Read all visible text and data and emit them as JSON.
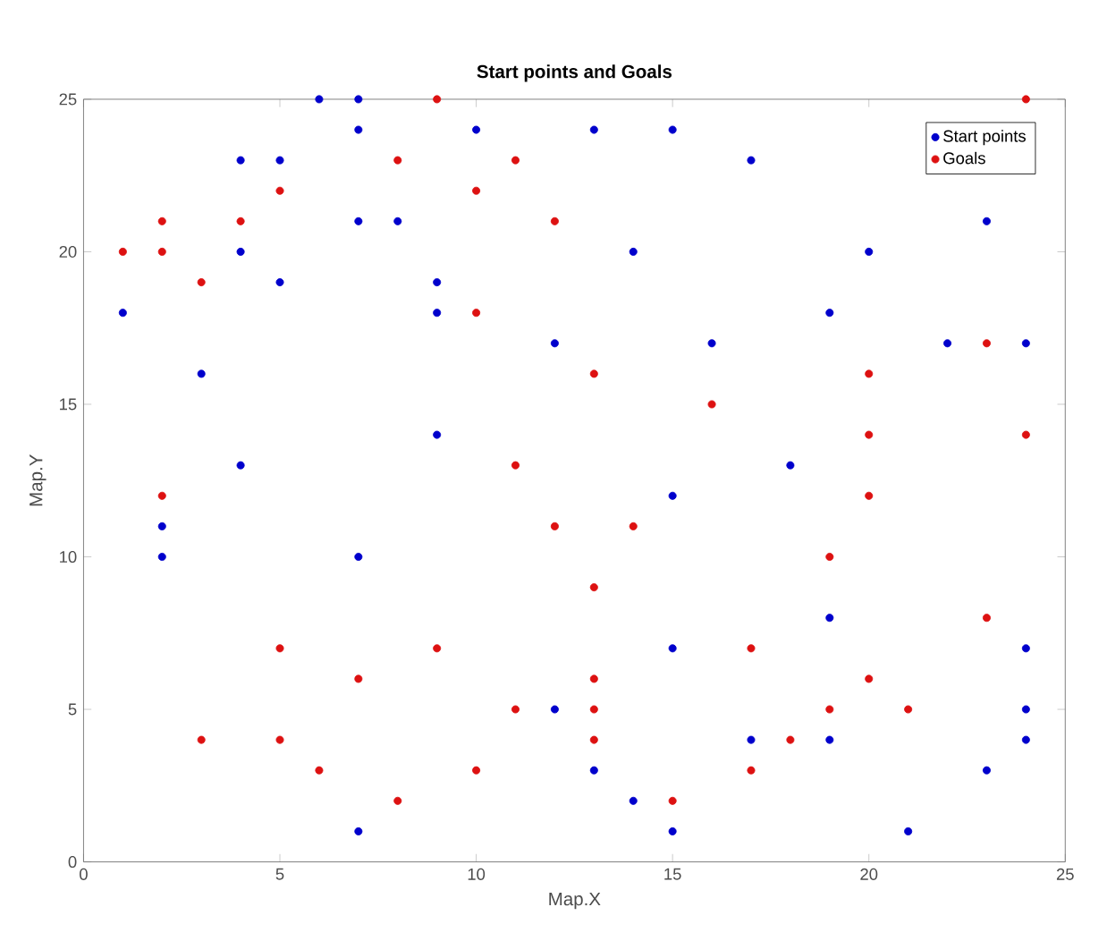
{
  "chart_data": {
    "type": "scatter",
    "title": "Start points and Goals",
    "xlabel": "Map.X",
    "ylabel": "Map.Y",
    "xlim": [
      0,
      25
    ],
    "ylim": [
      0,
      25
    ],
    "xticks": [
      0,
      5,
      10,
      15,
      20,
      25
    ],
    "yticks": [
      0,
      5,
      10,
      15,
      20,
      25
    ],
    "marker": "circle",
    "legend": "top right",
    "series": [
      {
        "name": "Start points",
        "color": "#0000cc",
        "x": [
          6,
          7,
          7,
          10,
          13,
          15,
          4,
          5,
          17,
          7,
          8,
          23,
          4,
          14,
          20,
          1,
          5,
          9,
          9,
          19,
          12,
          16,
          22,
          24,
          3,
          9,
          4,
          18,
          2,
          2,
          7,
          15,
          19,
          24,
          15,
          12,
          13,
          17,
          19,
          23,
          24,
          24,
          14,
          7,
          15,
          21
        ],
        "values": [
          25,
          25,
          24,
          24,
          24,
          24,
          23,
          23,
          23,
          21,
          21,
          21,
          20,
          20,
          20,
          18,
          19,
          19,
          18,
          18,
          17,
          17,
          17,
          17,
          16,
          14,
          13,
          13,
          11,
          10,
          10,
          12,
          8,
          7,
          7,
          5,
          3,
          4,
          4,
          3,
          5,
          4,
          2,
          1,
          1,
          1
        ]
      },
      {
        "name": "Goals",
        "color": "#dd1111",
        "x": [
          9,
          24,
          8,
          11,
          5,
          10,
          2,
          4,
          12,
          1,
          2,
          3,
          10,
          23,
          13,
          20,
          16,
          20,
          24,
          11,
          2,
          20,
          12,
          14,
          19,
          13,
          23,
          5,
          9,
          17,
          7,
          13,
          20,
          11,
          13,
          19,
          21,
          3,
          5,
          13,
          18,
          6,
          10,
          17,
          8,
          15
        ],
        "values": [
          25,
          25,
          23,
          23,
          22,
          22,
          21,
          21,
          21,
          20,
          20,
          19,
          18,
          17,
          16,
          16,
          15,
          14,
          14,
          13,
          12,
          12,
          11,
          11,
          10,
          9,
          8,
          7,
          7,
          7,
          6,
          6,
          6,
          5,
          5,
          5,
          5,
          4,
          4,
          4,
          4,
          3,
          3,
          3,
          2,
          2
        ]
      }
    ]
  }
}
